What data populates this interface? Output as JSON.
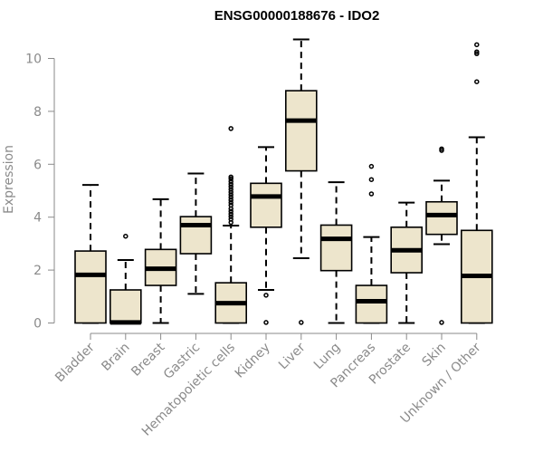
{
  "chart_data": {
    "type": "boxplot",
    "title": "ENSG00000188676 - IDO2",
    "xlabel": "",
    "ylabel": "Expression",
    "ylim": [
      0,
      11
    ],
    "yticks": [
      0,
      2,
      4,
      6,
      8,
      10
    ],
    "grid": false,
    "legend": "none",
    "colors": {
      "box_fill": "#ede5cc",
      "stroke": "#000000",
      "axis_text": "#8a8a8a"
    },
    "categories": [
      "Bladder",
      "Brain",
      "Breast",
      "Gastric",
      "Hematopoietic cells",
      "Kidney",
      "Liver",
      "Lung",
      "Pancreas",
      "Prostate",
      "Skin",
      "Unknown / Other"
    ],
    "boxes": [
      {
        "min": 0,
        "q1": 0,
        "median": 1.82,
        "q3": 2.72,
        "max": 5.22,
        "outliers": []
      },
      {
        "min": 0,
        "q1": 0,
        "median": 0.02,
        "q3": 1.25,
        "max": 2.38,
        "outliers": [
          3.28
        ]
      },
      {
        "min": 0,
        "q1": 1.42,
        "median": 2.05,
        "q3": 2.78,
        "max": 4.68,
        "outliers": []
      },
      {
        "min": 1.1,
        "q1": 2.62,
        "median": 3.7,
        "q3": 4.02,
        "max": 5.65,
        "outliers": []
      },
      {
        "min": 0,
        "q1": 0,
        "median": 0.75,
        "q3": 1.52,
        "max": 3.68,
        "outliers": [
          3.8,
          3.92,
          4.02,
          4.12,
          4.22,
          4.32,
          4.45,
          4.55,
          4.65,
          4.75,
          4.85,
          4.95,
          5.05,
          5.15,
          5.25,
          5.35,
          5.45,
          5.52,
          7.35
        ]
      },
      {
        "min": 1.25,
        "q1": 3.62,
        "median": 4.78,
        "q3": 5.28,
        "max": 6.65,
        "outliers": [
          1.05,
          0.02
        ]
      },
      {
        "min": 2.45,
        "q1": 5.75,
        "median": 7.65,
        "q3": 8.78,
        "max": 10.72,
        "outliers": [
          0.02
        ]
      },
      {
        "min": 0,
        "q1": 1.98,
        "median": 3.18,
        "q3": 3.7,
        "max": 5.32,
        "outliers": []
      },
      {
        "min": 0,
        "q1": 0,
        "median": 0.82,
        "q3": 1.42,
        "max": 3.25,
        "outliers": [
          4.88,
          5.42,
          5.92
        ]
      },
      {
        "min": 0,
        "q1": 1.9,
        "median": 2.75,
        "q3": 3.62,
        "max": 4.55,
        "outliers": []
      },
      {
        "min": 2.98,
        "q1": 3.35,
        "median": 4.08,
        "q3": 4.58,
        "max": 5.38,
        "outliers": [
          6.52,
          6.58,
          0.02
        ]
      },
      {
        "min": 0,
        "q1": 0,
        "median": 1.78,
        "q3": 3.5,
        "max": 7.02,
        "outliers": [
          9.12,
          10.18,
          10.25,
          10.52
        ]
      }
    ]
  }
}
